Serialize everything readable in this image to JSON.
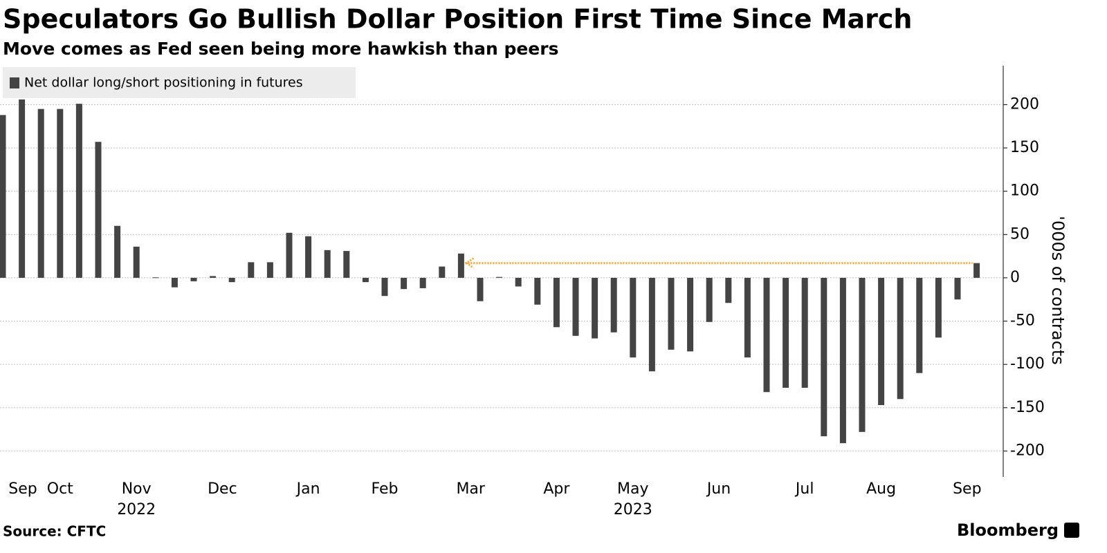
{
  "chart_data": {
    "type": "bar",
    "title": "Speculators Go Bullish Dollar Position First Time Since March",
    "subtitle": "Move comes as Fed seen being more hawkish than peers",
    "y_axis_label": "'000s of contracts",
    "source": "Source: CFTC",
    "brand": "Bloomberg",
    "series": [
      {
        "name": "Net dollar long/short positioning in futures",
        "color": "#444444",
        "values": [
          188,
          206,
          195,
          195,
          201,
          157,
          60,
          36,
          0.5,
          -11,
          -4,
          2,
          -5,
          18,
          18,
          52,
          48,
          32,
          31,
          -5,
          -21,
          -13,
          -12,
          13,
          28,
          -27,
          1,
          -10,
          -31,
          -57,
          -67,
          -70,
          -63,
          -92,
          -108,
          -83,
          -85,
          -51,
          -29,
          -92,
          -132,
          -127,
          -127,
          -183,
          -191,
          -178,
          -147,
          -140,
          -110,
          -69,
          -25,
          17
        ]
      }
    ],
    "highlight_color": "#f5a623",
    "xticks": [
      {
        "value": 1.05,
        "label": "Sep"
      },
      {
        "value": 3,
        "label": "Oct"
      },
      {
        "value": 7,
        "label": "Nov"
      },
      {
        "value": 11.5,
        "label": "Dec"
      },
      {
        "value": 16,
        "label": "Jan"
      },
      {
        "value": 20,
        "label": "Feb"
      },
      {
        "value": 24.5,
        "label": "Mar"
      },
      {
        "value": 29,
        "label": "Apr"
      },
      {
        "value": 33,
        "label": "May"
      },
      {
        "value": 37.5,
        "label": "Jun"
      },
      {
        "value": 42,
        "label": "Jul"
      },
      {
        "value": 46,
        "label": "Aug"
      },
      {
        "value": 50.5,
        "label": "Sep"
      }
    ],
    "year_labels": [
      {
        "value": 7,
        "label": "2022"
      },
      {
        "value": 33,
        "label": "2023"
      }
    ],
    "ylim": [
      -230,
      245
    ],
    "yticks": [
      -200,
      -150,
      -100,
      -50,
      0,
      50,
      100,
      150,
      200
    ],
    "grid": true
  }
}
